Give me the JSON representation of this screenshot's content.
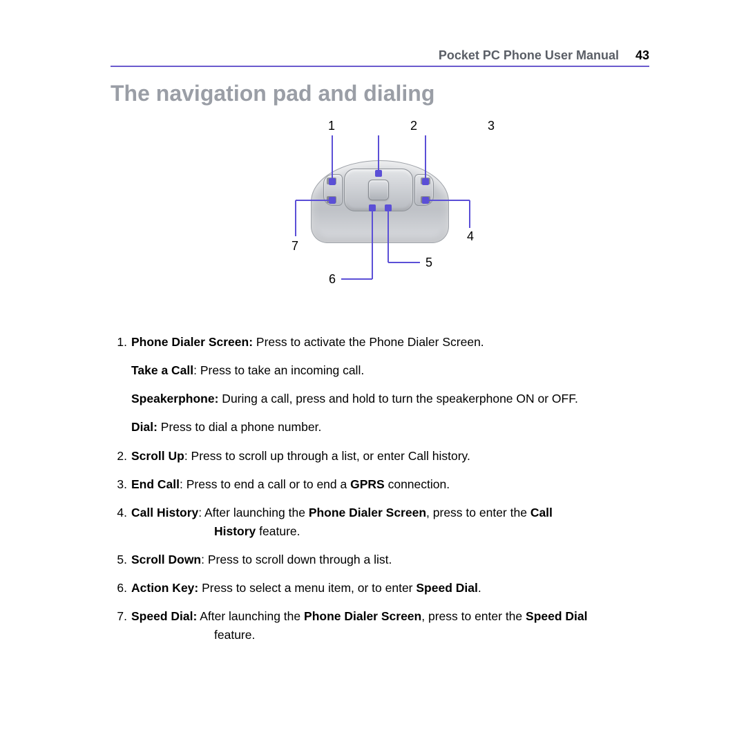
{
  "header": {
    "doc_title": "Pocket PC Phone User Manual",
    "page_number": "43",
    "rule_color": "#6a5acd",
    "title_color": "#5a5e66"
  },
  "section": {
    "title": "The navigation pad and dialing",
    "title_color": "#9a9ea6"
  },
  "diagram": {
    "callout_color": "#5b4fd6",
    "marker_color": "#5b4fd6",
    "labels": {
      "n1": "1",
      "n2": "2",
      "n3": "3",
      "n4": "4",
      "n5": "5",
      "n6": "6",
      "n7": "7"
    }
  },
  "items": [
    {
      "num": "1.",
      "lines": [
        {
          "bold": "Phone Dialer Screen:",
          "rest": " Press to activate the Phone Dialer Screen."
        },
        {
          "bold": "Take a Call",
          "rest": ": Press to take an incoming call."
        },
        {
          "bold": "Speakerphone:",
          "rest": " During a call, press and hold to turn the speakerphone ON or OFF."
        },
        {
          "bold": "Dial:",
          "rest": " Press to dial a phone number."
        }
      ]
    },
    {
      "num": "2.",
      "lines": [
        {
          "bold": "Scroll Up",
          "rest": ": Press to scroll up through a list, or enter Call history."
        }
      ]
    },
    {
      "num": "3.",
      "html": "<span class=\"bold\">End Call</span>: Press to end a call or to end a <span class=\"bold\">GPRS</span> connection."
    },
    {
      "num": "4.",
      "html": "<span class=\"bold\">Call History</span>: After launching the <span class=\"bold\">Phone Dialer Screen</span>, press to enter the <span class=\"bold\">Call</span>",
      "cont_indent": "History",
      "cont_rest": " feature."
    },
    {
      "num": "5.",
      "lines": [
        {
          "bold": "Scroll Down",
          "rest": ": Press to scroll down through a list."
        }
      ]
    },
    {
      "num": "6.",
      "html": "<span class=\"bold\">Action Key:</span> Press to select a menu item, or to enter <span class=\"bold\">Speed Dial</span>."
    },
    {
      "num": "7.",
      "html": "<span class=\"bold\">Speed Dial:</span> After launching the <span class=\"bold\">Phone Dialer Screen</span>, press to enter the <span class=\"bold\">Speed Dial</span>",
      "cont_plain": "feature."
    }
  ]
}
